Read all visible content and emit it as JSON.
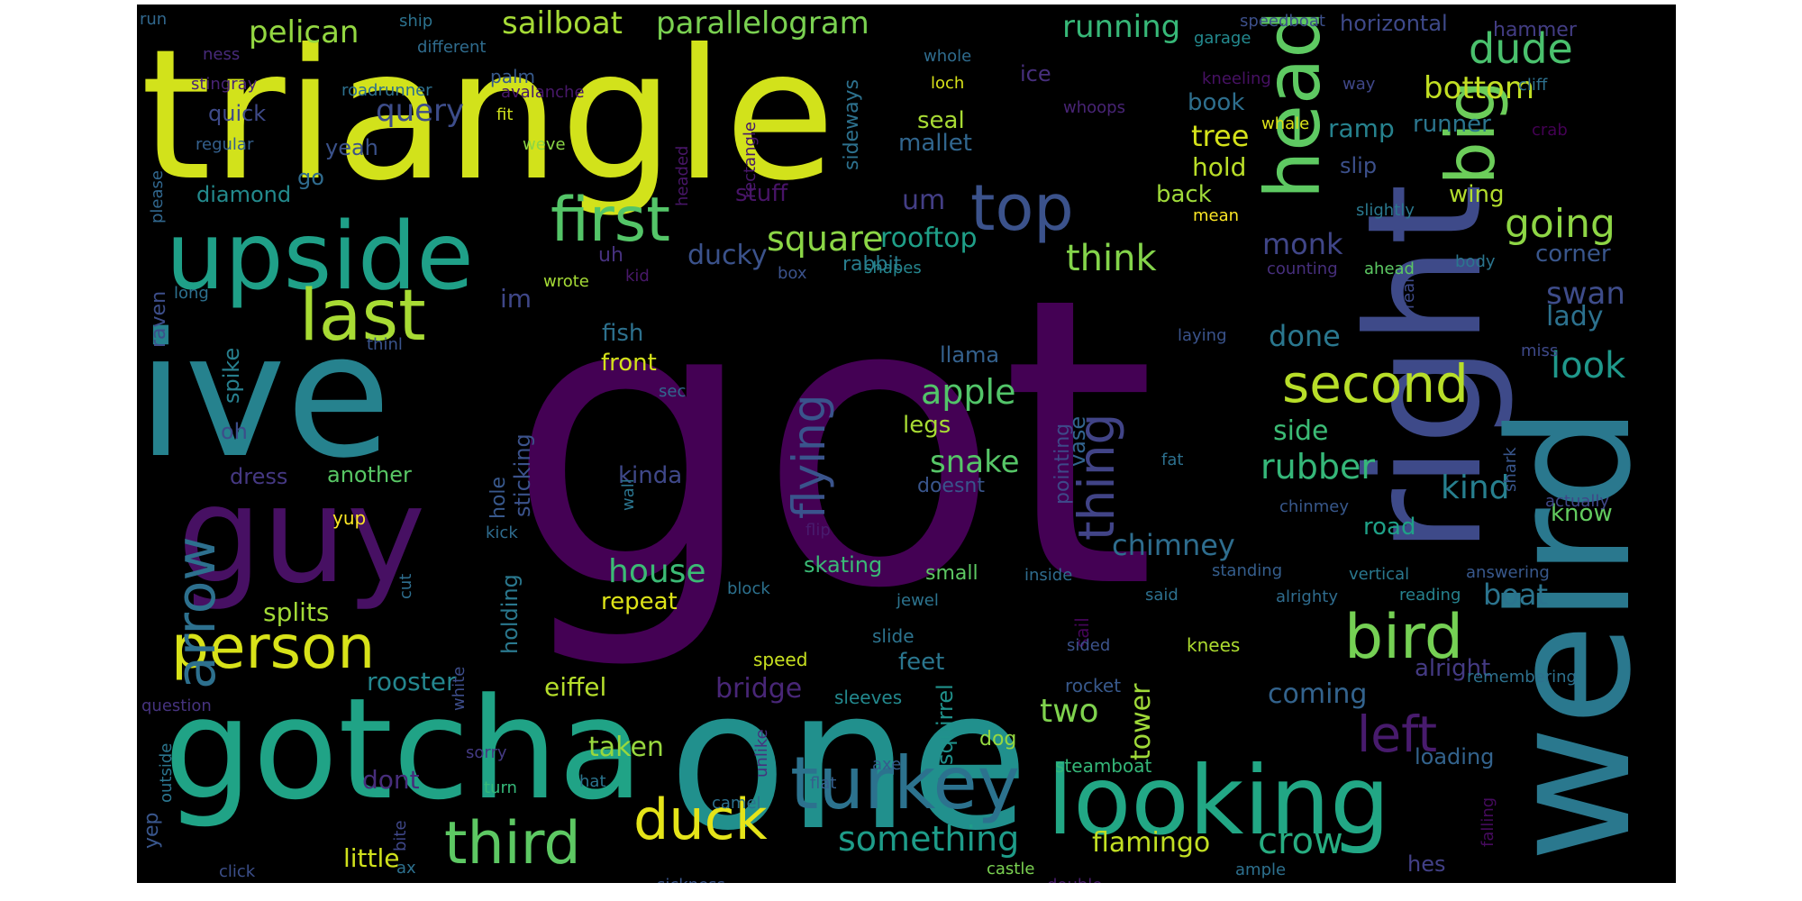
{
  "word_cloud": {
    "background": "#000000",
    "words": [
      {
        "text": "got",
        "color": "#440154"
      },
      {
        "text": "triangle",
        "color": "#D2E21B"
      },
      {
        "text": "one",
        "color": "#21908D"
      },
      {
        "text": "right",
        "color": "#3E4A89"
      },
      {
        "text": "ive",
        "color": "#26828E"
      },
      {
        "text": "weird",
        "color": "#2A788E"
      },
      {
        "text": "gotcha",
        "color": "#20A386"
      },
      {
        "text": "guy",
        "color": "#471063"
      },
      {
        "text": "looking",
        "color": "#22A785"
      },
      {
        "text": "upside",
        "color": "#1FA088"
      },
      {
        "text": "head",
        "color": "#5EC962"
      },
      {
        "text": "turkey",
        "color": "#2C728E"
      },
      {
        "text": "last",
        "color": "#A8DB34"
      },
      {
        "text": "first",
        "color": "#54C568"
      },
      {
        "text": "person",
        "color": "#D8E219"
      },
      {
        "text": "big",
        "color": "#6CCD5A"
      },
      {
        "text": "top",
        "color": "#3B528B"
      },
      {
        "text": "arrow",
        "color": "#2D708E"
      },
      {
        "text": "bird",
        "color": "#75D054"
      },
      {
        "text": "duck",
        "color": "#E5E419"
      },
      {
        "text": "third",
        "color": "#5DC863"
      },
      {
        "text": "second",
        "color": "#B8DE29"
      },
      {
        "text": "left",
        "color": "#481B6D"
      },
      {
        "text": "thing",
        "color": "#414487"
      },
      {
        "text": "flying",
        "color": "#3A548C"
      },
      {
        "text": "sailboat",
        "color": "#A5DB36"
      },
      {
        "text": "parallelogram",
        "color": "#7AD151"
      },
      {
        "text": "dude",
        "color": "#4AC16D"
      },
      {
        "text": "running",
        "color": "#37B878"
      },
      {
        "text": "pelican",
        "color": "#93D741"
      },
      {
        "text": "going",
        "color": "#8ED645"
      },
      {
        "text": "square",
        "color": "#8BD646"
      },
      {
        "text": "something",
        "color": "#1E9C89"
      },
      {
        "text": "think",
        "color": "#84D44B"
      },
      {
        "text": "rubber",
        "color": "#35B779"
      },
      {
        "text": "query",
        "color": "#3D4D8A"
      },
      {
        "text": "bottom",
        "color": "#C2DF23"
      },
      {
        "text": "look",
        "color": "#1F988B"
      },
      {
        "text": "apple",
        "color": "#52C569"
      },
      {
        "text": "crow",
        "color": "#27AD81"
      },
      {
        "text": "kind",
        "color": "#277F8E"
      },
      {
        "text": "house",
        "color": "#3BBB75"
      },
      {
        "text": "swan",
        "color": "#3E4C8A"
      },
      {
        "text": "snake",
        "color": "#56C667"
      },
      {
        "text": "bridge",
        "color": "#482677"
      },
      {
        "text": "flamingo",
        "color": "#C2DF23"
      },
      {
        "text": "chimney",
        "color": "#2E6D8E"
      },
      {
        "text": "monk",
        "color": "#404688"
      },
      {
        "text": "done",
        "color": "#2A778E"
      },
      {
        "text": "tree",
        "color": "#D5E21A"
      },
      {
        "text": "ducky",
        "color": "#3B528B"
      },
      {
        "text": "boat",
        "color": "#2B748E"
      },
      {
        "text": "two",
        "color": "#7FD34E"
      },
      {
        "text": "kinda",
        "color": "#3F4889"
      },
      {
        "text": "rooftop",
        "color": "#1F9F88"
      },
      {
        "text": "im",
        "color": "#3F4788"
      },
      {
        "text": "lady",
        "color": "#2C718E"
      },
      {
        "text": "um",
        "color": "#433E85"
      },
      {
        "text": "side",
        "color": "#3BBB75"
      },
      {
        "text": "coming",
        "color": "#33638D"
      },
      {
        "text": "taken",
        "color": "#98D83E"
      },
      {
        "text": "rooster",
        "color": "#24868E"
      },
      {
        "text": "eiffel",
        "color": "#B5DE2B"
      },
      {
        "text": "splits",
        "color": "#A2DA37"
      },
      {
        "text": "tower",
        "color": "#A0DA39"
      },
      {
        "text": "dont",
        "color": "#472D7B"
      },
      {
        "text": "little",
        "color": "#D0E11C"
      },
      {
        "text": "fish",
        "color": "#2D718E"
      },
      {
        "text": "front",
        "color": "#D5E21A"
      },
      {
        "text": "feet",
        "color": "#2A768E"
      },
      {
        "text": "repeat",
        "color": "#DDE318"
      },
      {
        "text": "corner",
        "color": "#39568C"
      },
      {
        "text": "alright",
        "color": "#443A83"
      },
      {
        "text": "loading",
        "color": "#33638D"
      },
      {
        "text": "road",
        "color": "#1FA187"
      },
      {
        "text": "know",
        "color": "#63CB5F"
      },
      {
        "text": "legs",
        "color": "#A8DB34"
      },
      {
        "text": "llama",
        "color": "#34618D"
      },
      {
        "text": "squirrel",
        "color": "#20928C"
      },
      {
        "text": "skating",
        "color": "#3ABA76"
      },
      {
        "text": "holding",
        "color": "#2A788E"
      },
      {
        "text": "another",
        "color": "#58C765"
      },
      {
        "text": "dress",
        "color": "#453882"
      },
      {
        "text": "sticking",
        "color": "#3B528B"
      },
      {
        "text": "vase",
        "color": "#32648E"
      },
      {
        "text": "pointing",
        "color": "#3E4989"
      },
      {
        "text": "small",
        "color": "#5DC863"
      },
      {
        "text": "doesnt",
        "color": "#39558C"
      },
      {
        "text": "rabbit",
        "color": "#287D8E"
      },
      {
        "text": "ramp",
        "color": "#26828E"
      },
      {
        "text": "runner",
        "color": "#2B758E"
      },
      {
        "text": "wing",
        "color": "#B2DD2D"
      },
      {
        "text": "slip",
        "color": "#3C508B"
      },
      {
        "text": "hold",
        "color": "#BADE28"
      },
      {
        "text": "book",
        "color": "#2E6F8E"
      },
      {
        "text": "back",
        "color": "#9FDA3A"
      },
      {
        "text": "seal",
        "color": "#A8DB34"
      },
      {
        "text": "mallet",
        "color": "#31668E"
      },
      {
        "text": "sideways",
        "color": "#2D718E"
      },
      {
        "text": "stuff",
        "color": "#481467"
      },
      {
        "text": "quick",
        "color": "#3E4A89"
      },
      {
        "text": "yeah",
        "color": "#3B528B"
      },
      {
        "text": "diamond",
        "color": "#238A8D"
      },
      {
        "text": "go",
        "color": "#2F6B8E"
      },
      {
        "text": "uh",
        "color": "#46317E"
      },
      {
        "text": "raven",
        "color": "#3D4E8A"
      },
      {
        "text": "spike",
        "color": "#277F8E"
      },
      {
        "text": "oh",
        "color": "#3D4D8A"
      },
      {
        "text": "hole",
        "color": "#38588C"
      },
      {
        "text": "horizontal",
        "color": "#3E4989"
      },
      {
        "text": "hammer",
        "color": "#433D84"
      },
      {
        "text": "ice",
        "color": "#472F7D"
      },
      {
        "text": "palm",
        "color": "#375A8C"
      },
      {
        "text": "hes",
        "color": "#424086"
      },
      {
        "text": "sail",
        "color": "#450559"
      },
      {
        "text": "rocket",
        "color": "#38598C"
      },
      {
        "text": "knees",
        "color": "#ADDC30"
      },
      {
        "text": "speed",
        "color": "#C8E020"
      },
      {
        "text": "sleeves",
        "color": "#23898E"
      },
      {
        "text": "slide",
        "color": "#2C738E"
      },
      {
        "text": "dog",
        "color": "#95D840"
      },
      {
        "text": "steamboat",
        "color": "#35B779"
      },
      {
        "text": "axe",
        "color": "#365C8D"
      },
      {
        "text": "flat",
        "color": "#355F8D"
      },
      {
        "text": "yup",
        "color": "#FDE725"
      },
      {
        "text": "yep",
        "color": "#39568C"
      },
      {
        "text": "ship",
        "color": "#2C728E"
      },
      {
        "text": "run",
        "color": "#31688E"
      },
      {
        "text": "ness",
        "color": "#472A7A"
      },
      {
        "text": "different",
        "color": "#2F6C8E"
      },
      {
        "text": "roadrunner",
        "color": "#2D708E"
      },
      {
        "text": "avalanche",
        "color": "#48186A"
      },
      {
        "text": "stingray",
        "color": "#482374"
      },
      {
        "text": "fit",
        "color": "#CFE11C"
      },
      {
        "text": "weve",
        "color": "#8BD646"
      },
      {
        "text": "regular",
        "color": "#34608D"
      },
      {
        "text": "please",
        "color": "#31678E"
      },
      {
        "text": "headed",
        "color": "#481668"
      },
      {
        "text": "rectangle",
        "color": "#48186A"
      },
      {
        "text": "speedboat",
        "color": "#3C4F8A"
      },
      {
        "text": "garage",
        "color": "#23898E"
      },
      {
        "text": "whole",
        "color": "#2F6C8E"
      },
      {
        "text": "loch",
        "color": "#D8E219"
      },
      {
        "text": "kneeling",
        "color": "#471164"
      },
      {
        "text": "whoops",
        "color": "#482475"
      },
      {
        "text": "way",
        "color": "#3F4788"
      },
      {
        "text": "cliff",
        "color": "#2D708E"
      },
      {
        "text": "whale",
        "color": "#DCE319"
      },
      {
        "text": "crab",
        "color": "#440154"
      },
      {
        "text": "mean",
        "color": "#FDE725"
      },
      {
        "text": "slightly",
        "color": "#2A788E"
      },
      {
        "text": "ahead",
        "color": "#5CC863"
      },
      {
        "text": "body",
        "color": "#2B758E"
      },
      {
        "text": "counting",
        "color": "#472F7D"
      },
      {
        "text": "real",
        "color": "#3E4A89"
      },
      {
        "text": "shapes",
        "color": "#25858E"
      },
      {
        "text": "box",
        "color": "#3B528B"
      },
      {
        "text": "kid",
        "color": "#48186A"
      },
      {
        "text": "wrote",
        "color": "#A5DB36"
      },
      {
        "text": "long",
        "color": "#2D708E"
      },
      {
        "text": "thinl",
        "color": "#3A548C"
      },
      {
        "text": "laying",
        "color": "#3A538B"
      },
      {
        "text": "miss",
        "color": "#3E4989"
      },
      {
        "text": "sec",
        "color": "#31688E"
      },
      {
        "text": "shark",
        "color": "#39568C"
      },
      {
        "text": "actually",
        "color": "#3F4788"
      },
      {
        "text": "chinmey",
        "color": "#38588C"
      },
      {
        "text": "fat",
        "color": "#2D708E"
      },
      {
        "text": "wall",
        "color": "#2B748E"
      },
      {
        "text": "kick",
        "color": "#2F6C8E"
      },
      {
        "text": "flip",
        "color": "#481B6D"
      },
      {
        "text": "standing",
        "color": "#355E8D"
      },
      {
        "text": "answering",
        "color": "#38588C"
      },
      {
        "text": "inside",
        "color": "#2F6C8E"
      },
      {
        "text": "vertical",
        "color": "#2A788E"
      },
      {
        "text": "block",
        "color": "#2C718E"
      },
      {
        "text": "said",
        "color": "#2D708E"
      },
      {
        "text": "reading",
        "color": "#26828E"
      },
      {
        "text": "alrighty",
        "color": "#2F6C8E"
      },
      {
        "text": "jewel",
        "color": "#2C738E"
      },
      {
        "text": "cut",
        "color": "#2E6E8E"
      },
      {
        "text": "white",
        "color": "#3D4D8A"
      },
      {
        "text": "sided",
        "color": "#3B528B"
      },
      {
        "text": "remembering",
        "color": "#2D718E"
      },
      {
        "text": "question",
        "color": "#46337F"
      },
      {
        "text": "outside",
        "color": "#2B758E"
      },
      {
        "text": "sorry",
        "color": "#443A83"
      },
      {
        "text": "unlike",
        "color": "#46327E"
      },
      {
        "text": "turn",
        "color": "#36B97A"
      },
      {
        "text": "hat",
        "color": "#2B748E"
      },
      {
        "text": "camel",
        "color": "#2D718E"
      },
      {
        "text": "bite",
        "color": "#3F4788"
      },
      {
        "text": "ax",
        "color": "#2D708E"
      },
      {
        "text": "click",
        "color": "#3C4F8A"
      },
      {
        "text": "sickness",
        "color": "#39568C"
      },
      {
        "text": "castle",
        "color": "#7AD151"
      },
      {
        "text": "double",
        "color": "#481B6D"
      },
      {
        "text": "ample",
        "color": "#2D708E"
      },
      {
        "text": "falling",
        "color": "#460B5E"
      }
    ]
  }
}
